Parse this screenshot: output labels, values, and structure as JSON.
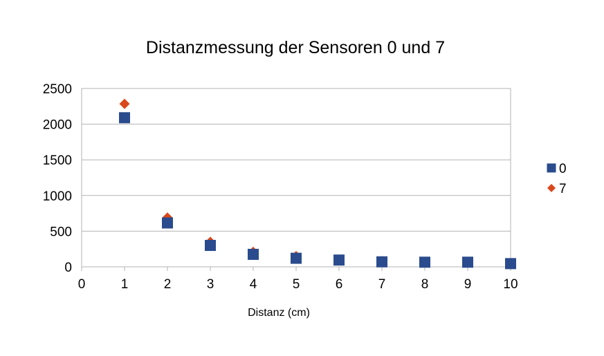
{
  "chart_data": {
    "type": "scatter",
    "title": "Distanzmessung der Sensoren 0 und 7",
    "xlabel": "Distanz (cm)",
    "ylabel": "",
    "xlim": [
      0,
      10
    ],
    "ylim": [
      0,
      2500
    ],
    "x_ticks": [
      "0",
      "1",
      "2",
      "3",
      "4",
      "5",
      "6",
      "7",
      "8",
      "9",
      "10"
    ],
    "y_ticks": [
      "0",
      "500",
      "1000",
      "1500",
      "2000",
      "2500"
    ],
    "grid": "horizontal",
    "legend_position": "right",
    "series": [
      {
        "name": "0",
        "marker": "square",
        "color": "#2a4b8d",
        "x": [
          1,
          2,
          3,
          4,
          5,
          6,
          7,
          8,
          9,
          10
        ],
        "y": [
          2090,
          615,
          300,
          175,
          120,
          95,
          70,
          65,
          65,
          45
        ]
      },
      {
        "name": "7",
        "marker": "diamond",
        "color": "#d9481c",
        "x": [
          1,
          2,
          3,
          4,
          5,
          6,
          7,
          8,
          9,
          10
        ],
        "y": [
          2285,
          690,
          350,
          210,
          150,
          100,
          80,
          65,
          60,
          45
        ]
      }
    ]
  }
}
